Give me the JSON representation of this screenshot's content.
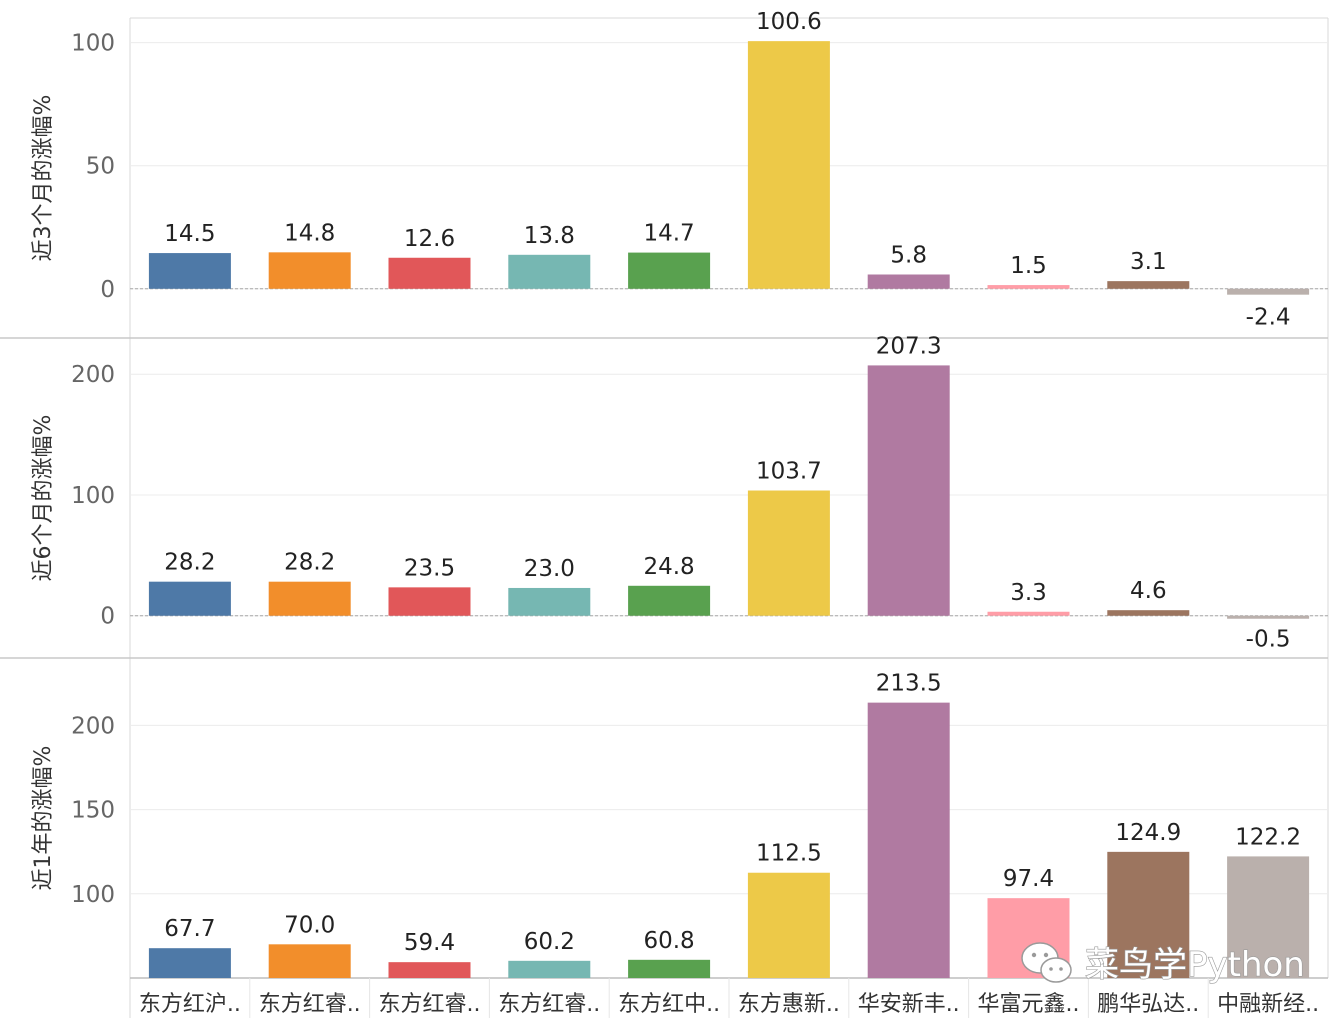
{
  "watermark": {
    "text": "菜鸟学Python",
    "icon": "wechat-icon"
  },
  "chart_data": {
    "type": "bar",
    "layout": "stacked-panels",
    "categories": [
      "东方红沪..",
      "东方红睿..",
      "东方红睿..",
      "东方红睿..",
      "东方红中..",
      "东方惠新..",
      "华安新丰..",
      "华富元鑫..",
      "鹏华弘达..",
      "中融新经.."
    ],
    "colors": [
      "#4e79a7",
      "#f28e2b",
      "#e15759",
      "#76b7b2",
      "#59a14f",
      "#edc948",
      "#b07aa1",
      "#ff9da7",
      "#9c755f",
      "#bab0ac"
    ],
    "panels": [
      {
        "ylabel": "近3个月的涨幅%",
        "ylim": [
          -20,
          110
        ],
        "yticks": [
          0,
          50,
          100
        ],
        "labels": [
          "14.5",
          "14.8",
          "12.6",
          "13.8",
          "14.7",
          "100.6",
          "5.8",
          "1.5",
          "3.1",
          "-2.4"
        ],
        "values": [
          14.5,
          14.8,
          12.6,
          13.8,
          14.7,
          100.6,
          5.8,
          1.5,
          3.1,
          -2.4
        ],
        "zero_line": true
      },
      {
        "ylabel": "近6个月的涨幅%",
        "ylim": [
          -35,
          230
        ],
        "yticks": [
          0,
          100,
          200
        ],
        "labels": [
          "28.2",
          "28.2",
          "23.5",
          "23.0",
          "24.8",
          "103.7",
          "207.3",
          "3.3",
          "4.6",
          "-0.5"
        ],
        "values": [
          28.2,
          28.2,
          23.5,
          23.0,
          24.8,
          103.7,
          207.3,
          3.3,
          4.6,
          -0.5
        ],
        "zero_line": true
      },
      {
        "ylabel": "近1年的涨幅%",
        "ylim": [
          50,
          240
        ],
        "yticks": [
          100,
          150,
          200
        ],
        "labels": [
          "67.7",
          "70.0",
          "59.4",
          "60.2",
          "60.8",
          "112.5",
          "213.5",
          "97.4",
          "124.9",
          "122.2"
        ],
        "values": [
          67.7,
          70.0,
          59.4,
          60.2,
          60.8,
          112.5,
          213.5,
          97.4,
          124.9,
          122.2
        ],
        "zero_line": false
      }
    ],
    "grid": true,
    "legend": "none"
  }
}
